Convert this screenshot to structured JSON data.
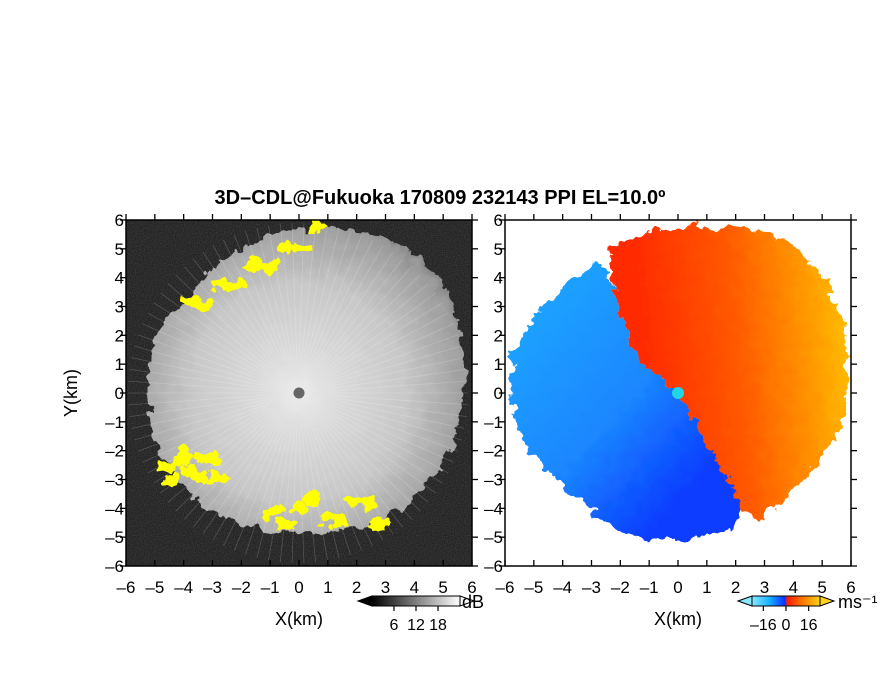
{
  "title": "3D–CDL@Fukuoka 170809 232143 PPI EL=10.0º",
  "chart_data": [
    {
      "type": "heatmap",
      "panel": "reflectivity (SNR) PPI",
      "xlabel": "X(km)",
      "ylabel": "Y(km)",
      "xlim": [
        -6,
        6
      ],
      "ylim": [
        -6,
        6
      ],
      "xticks": [
        "–6",
        "–5",
        "–4",
        "–3",
        "–2",
        "–1",
        "0",
        "1",
        "2",
        "3",
        "4",
        "5",
        "6"
      ],
      "yticks": [
        "–6",
        "–5",
        "–4",
        "–3",
        "–2",
        "–1",
        "0",
        "1",
        "2",
        "3",
        "4",
        "5",
        "6"
      ],
      "colorbar": {
        "unit": "dB",
        "ticks": [
          "6",
          "12",
          "18"
        ],
        "range": [
          0,
          24
        ],
        "colormap": "greyscale (dark to light)",
        "saturated_color": "#ffff00"
      },
      "saturated_regions": [
        {
          "name": "north",
          "x": [
            -3.8,
            0.7
          ],
          "y": [
            3.0,
            5.7
          ]
        },
        {
          "name": "south-west",
          "x": [
            -4.6,
            -2.8
          ],
          "y": [
            -3.2,
            -1.9
          ]
        },
        {
          "name": "south",
          "x": [
            -0.9,
            2.8
          ],
          "y": [
            -4.8,
            -3.4
          ]
        }
      ],
      "center_marker_color": "#666666"
    },
    {
      "type": "heatmap",
      "panel": "Doppler velocity PPI",
      "xlabel": "X(km)",
      "ylabel": "",
      "xlim": [
        -6,
        6
      ],
      "ylim": [
        -6,
        6
      ],
      "xticks": [
        "–6",
        "–5",
        "–4",
        "–3",
        "–2",
        "–1",
        "0",
        "1",
        "2",
        "3",
        "4",
        "5",
        "6"
      ],
      "yticks": [
        "–6",
        "–5",
        "–4",
        "–3",
        "–2",
        "–1",
        "0",
        "1",
        "2",
        "3",
        "4",
        "5",
        "6"
      ],
      "colorbar": {
        "unit": "ms⁻¹",
        "ticks": [
          "–16",
          "0",
          "16"
        ],
        "range": [
          -24,
          24
        ],
        "colormap": "blue–cyan / red–orange–yellow"
      },
      "velocity_dividing_line": {
        "from": [
          -2.8,
          4.7
        ],
        "to": [
          2.6,
          -4.0
        ]
      },
      "negative_side": "west (blue)",
      "positive_side": "east (red/orange)",
      "center_marker_color": "#22d4e8"
    }
  ]
}
